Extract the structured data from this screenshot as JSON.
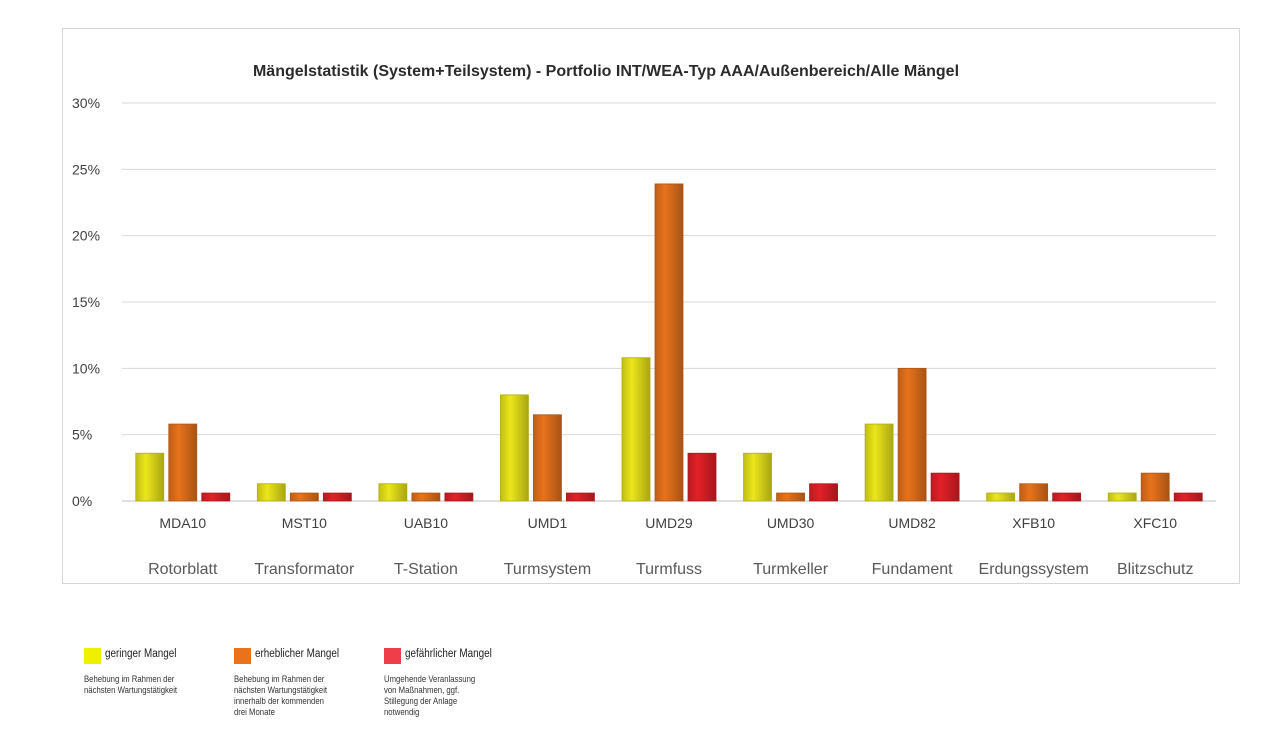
{
  "chart_data": {
    "type": "bar",
    "title": "Mängelstatistik (System+Teilsystem) - Portfolio INT/WEA-Typ AAA/Außenbereich/Alle Mängel",
    "codes": [
      "MDA10",
      "MST10",
      "UAB10",
      "UMD1",
      "UMD29",
      "UMD30",
      "UMD82",
      "XFB10",
      "XFC10"
    ],
    "categories": [
      "Rotorblatt",
      "Transformator",
      "T-Station",
      "Turmsystem",
      "Turmfuss",
      "Turmkeller",
      "Fundament",
      "Erdungssystem",
      "Blitzschutz"
    ],
    "y_ticks": [
      "0%",
      "5%",
      "10%",
      "15%",
      "20%",
      "25%",
      "30%"
    ],
    "ylim": [
      0,
      30
    ],
    "grid": true,
    "series": [
      {
        "name": "geringer Mangel",
        "color": "#ebe61a",
        "values": [
          3.6,
          1.3,
          1.3,
          8.0,
          10.8,
          3.6,
          5.8,
          0.6,
          0.6
        ]
      },
      {
        "name": "erheblicher Mangel",
        "color": "#e8731c",
        "values": [
          5.8,
          0.6,
          0.6,
          6.5,
          23.9,
          0.6,
          10.0,
          1.3,
          2.1
        ]
      },
      {
        "name": "gefährlicher Mangel",
        "color": "#e32027",
        "values": [
          0.6,
          0.6,
          0.6,
          0.6,
          3.6,
          1.3,
          2.1,
          0.6,
          0.6
        ]
      }
    ]
  },
  "legend": [
    {
      "name": "geringer Mangel",
      "color": "#eef000",
      "desc": "Behebung im Rahmen der\nnächsten Wartungstätigkeit"
    },
    {
      "name": "erheblicher Mangel",
      "color": "#e8731c",
      "desc": "Behebung im Rahmen der\nnächsten Wartungstätigkeit\ninnerhalb der kommenden\ndrei Monate"
    },
    {
      "name": "gefährlicher Mangel",
      "color": "#ee3e4a",
      "desc": "Umgehende Veranlassung\nvon Maßnahmen, ggf.\nStillegung der Anlage\nnotwendig"
    }
  ]
}
